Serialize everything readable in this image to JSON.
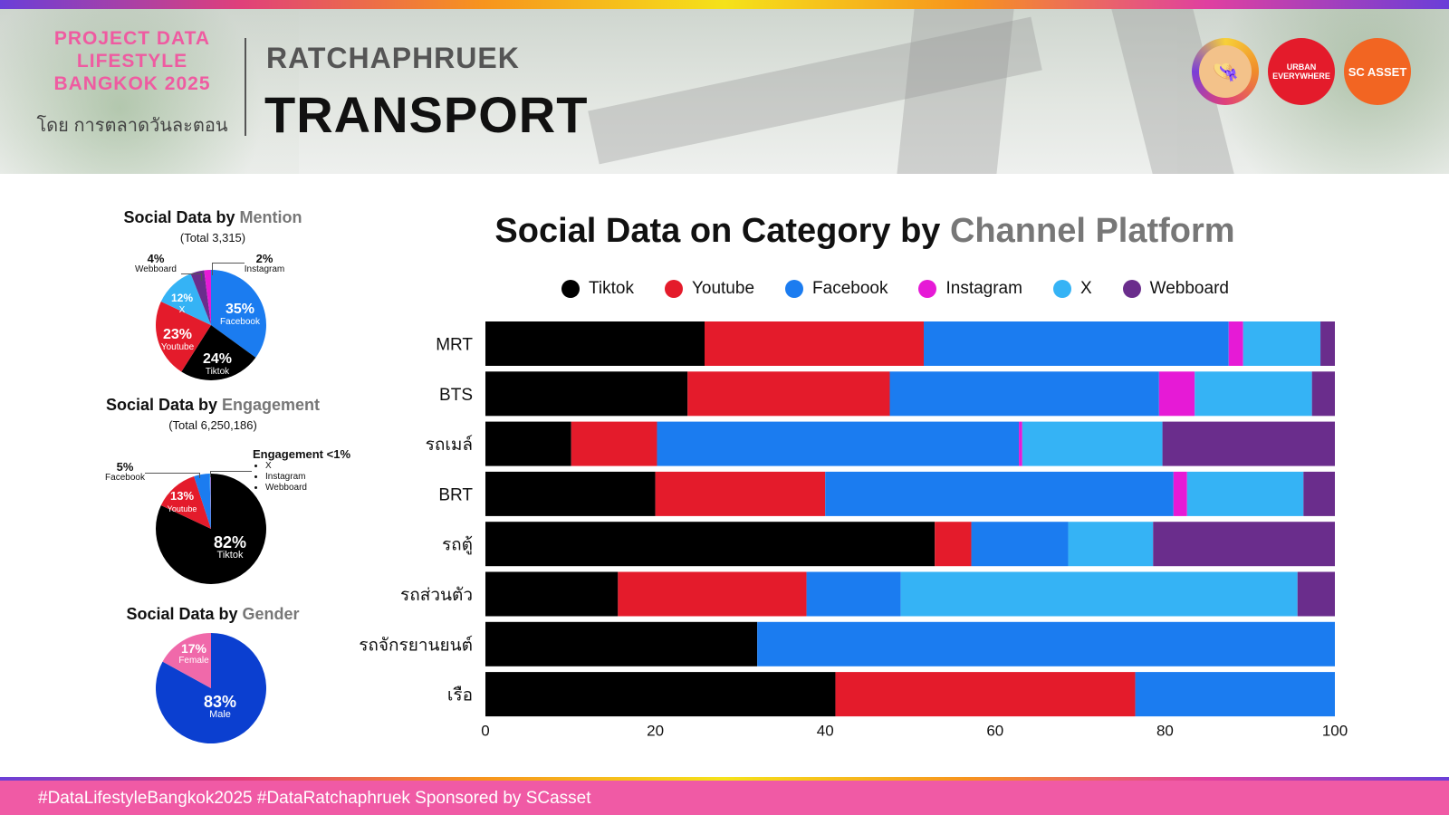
{
  "header": {
    "brand_lines": [
      "PROJECT DATA",
      "LIFESTYLE",
      "BANGKOK 2025"
    ],
    "brand_sub": "โดย การตลาดวันละตอน",
    "district": "RATCHAPHRUEK",
    "topic": "TRANSPORT",
    "logos": {
      "urban": "URBAN EVERYWHERE",
      "sc": "SC ASSET"
    }
  },
  "mention": {
    "title_main": "Social Data by ",
    "title_accent": "Mention",
    "total": "(Total 3,315)",
    "slices": [
      {
        "name": "Facebook",
        "label": "35%",
        "value": 35,
        "color": "#1b7cf0"
      },
      {
        "name": "Tiktok",
        "label": "24%",
        "value": 24,
        "color": "#000000"
      },
      {
        "name": "Youtube",
        "label": "23%",
        "value": 23,
        "color": "#e41b2b"
      },
      {
        "name": "X",
        "label": "12%",
        "value": 12,
        "color": "#35b3f5"
      },
      {
        "name": "Webboard",
        "label": "4%",
        "value": 4,
        "color": "#6a2d8c"
      },
      {
        "name": "Instagram",
        "label": "2%",
        "value": 2,
        "color": "#e61ad6"
      }
    ]
  },
  "engagement": {
    "title_main": "Social Data by ",
    "title_accent": "Engagement",
    "total": "(Total 6,250,186)",
    "note_title": "Engagement <1%",
    "note_items": [
      "X",
      "Instagram",
      "Webboard"
    ],
    "slices": [
      {
        "name": "Tiktok",
        "label": "82%",
        "value": 82,
        "color": "#000000"
      },
      {
        "name": "Youtube",
        "label": "13%",
        "value": 13,
        "color": "#e41b2b"
      },
      {
        "name": "Facebook",
        "label": "5%",
        "value": 4.6,
        "color": "#1b7cf0"
      },
      {
        "name": "X",
        "value": 0.2,
        "color": "#35b3f5"
      },
      {
        "name": "Instagram",
        "value": 0.1,
        "color": "#e61ad6"
      },
      {
        "name": "Webboard",
        "value": 0.1,
        "color": "#6a2d8c"
      }
    ]
  },
  "gender": {
    "title_main": "Social Data by ",
    "title_accent": "Gender",
    "slices": [
      {
        "name": "Male",
        "label": "83%",
        "value": 83,
        "color": "#0b3fd0"
      },
      {
        "name": "Female",
        "label": "17%",
        "value": 17,
        "color": "#f069aa"
      }
    ]
  },
  "chart_data": {
    "type": "bar",
    "orientation": "horizontal",
    "stacked": true,
    "title": "Social Data on Category by Channel Platform",
    "title_main": "Social Data on Category by ",
    "title_accent": "Channel Platform",
    "categories": [
      "MRT",
      "BTS",
      "รถเมล์",
      "BRT",
      "รถตู้",
      "รถส่วนตัว",
      "รถจักรยานยนต์",
      "เรือ"
    ],
    "xlim": [
      0,
      100
    ],
    "xticks": [
      0,
      20,
      40,
      60,
      80,
      100
    ],
    "legend_position": "top",
    "grid": false,
    "series": [
      {
        "name": "Tiktok",
        "color": "#000000",
        "values": [
          25.8,
          23.8,
          10.1,
          20.0,
          52.9,
          15.6,
          32.0,
          41.2
        ]
      },
      {
        "name": "Youtube",
        "color": "#e41b2b",
        "values": [
          25.8,
          23.8,
          10.1,
          20.0,
          4.3,
          22.2,
          0,
          35.3
        ]
      },
      {
        "name": "Facebook",
        "color": "#1b7cf0",
        "values": [
          35.9,
          31.7,
          42.6,
          41.0,
          11.4,
          11.1,
          68.0,
          23.5
        ]
      },
      {
        "name": "Instagram",
        "color": "#e61ad6",
        "values": [
          1.7,
          4.2,
          0.4,
          1.6,
          0,
          0,
          0,
          0
        ]
      },
      {
        "name": "X",
        "color": "#35b3f5",
        "values": [
          9.1,
          13.8,
          16.5,
          13.7,
          10.0,
          46.7,
          0,
          0
        ]
      },
      {
        "name": "Webboard",
        "color": "#6a2d8c",
        "values": [
          1.7,
          2.7,
          20.3,
          3.7,
          21.4,
          4.4,
          0,
          0
        ]
      }
    ]
  },
  "footer": {
    "text": "#DataLifestyleBangkok2025 #DataRatchaphruek Sponsored by SCasset"
  }
}
